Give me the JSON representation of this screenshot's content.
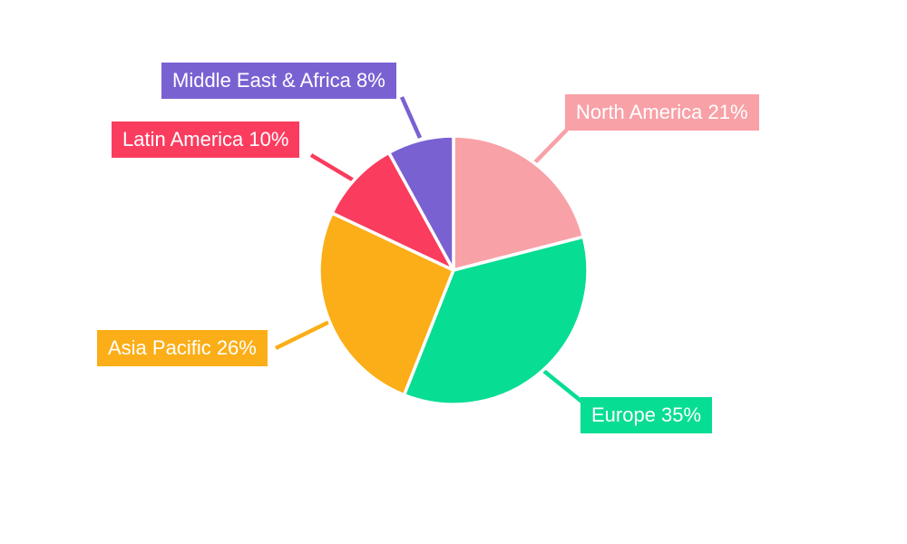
{
  "chart_data": {
    "type": "pie",
    "unit": "%",
    "start_angle_deg": 0,
    "direction": "clockwise",
    "legend_position": "callout-labels",
    "background_color": "#ffffff",
    "slice_gap_color": "#ffffff",
    "slices": [
      {
        "name": "North America",
        "value": 21,
        "label": "North America 21%",
        "color": "#F8A1A7"
      },
      {
        "name": "Europe",
        "value": 35,
        "label": "Europe 35%",
        "color": "#07DD93"
      },
      {
        "name": "Asia Pacific",
        "value": 26,
        "label": "Asia Pacific 26%",
        "color": "#FBAE17"
      },
      {
        "name": "Latin America",
        "value": 10,
        "label": "Latin America 10%",
        "color": "#FA3C5F"
      },
      {
        "name": "Middle East & Africa",
        "value": 8,
        "label": "Middle East & Africa 8%",
        "color": "#7A61D2"
      }
    ]
  }
}
